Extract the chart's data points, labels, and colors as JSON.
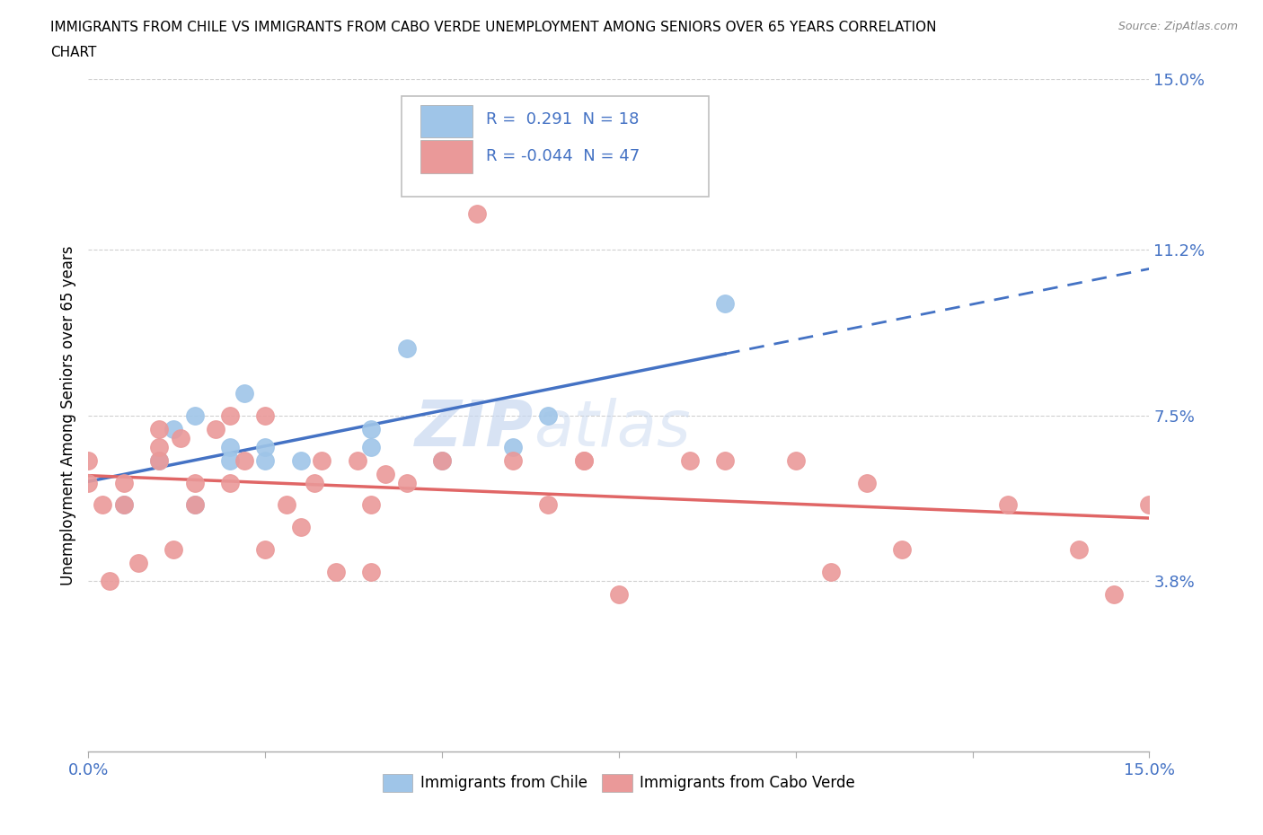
{
  "title_line1": "IMMIGRANTS FROM CHILE VS IMMIGRANTS FROM CABO VERDE UNEMPLOYMENT AMONG SENIORS OVER 65 YEARS CORRELATION",
  "title_line2": "CHART",
  "source_text": "Source: ZipAtlas.com",
  "ylabel": "Unemployment Among Seniors over 65 years",
  "xmin": 0.0,
  "xmax": 0.15,
  "ymin": 0.0,
  "ymax": 0.15,
  "yticks": [
    0.038,
    0.075,
    0.112,
    0.15
  ],
  "ytick_labels": [
    "3.8%",
    "7.5%",
    "11.2%",
    "15.0%"
  ],
  "xticks_major": [
    0.0,
    0.05,
    0.1,
    0.15
  ],
  "xticks_minor": [
    0.0,
    0.025,
    0.05,
    0.075,
    0.1,
    0.125,
    0.15
  ],
  "xtick_labels_show": {
    "0.0": "0.0%",
    "0.15": "15.0%"
  },
  "chile_color": "#9fc5e8",
  "cabo_verde_color": "#ea9999",
  "chile_line_color": "#4472c4",
  "cabo_verde_line_color": "#e06666",
  "chile_R": 0.291,
  "chile_N": 18,
  "cabo_verde_R": -0.044,
  "cabo_verde_N": 47,
  "chile_x": [
    0.005,
    0.01,
    0.012,
    0.015,
    0.015,
    0.02,
    0.02,
    0.022,
    0.025,
    0.025,
    0.03,
    0.04,
    0.04,
    0.045,
    0.05,
    0.06,
    0.065,
    0.09
  ],
  "chile_y": [
    0.055,
    0.065,
    0.072,
    0.055,
    0.075,
    0.065,
    0.068,
    0.08,
    0.065,
    0.068,
    0.065,
    0.072,
    0.068,
    0.09,
    0.065,
    0.068,
    0.075,
    0.1
  ],
  "cabo_verde_x": [
    0.0,
    0.0,
    0.002,
    0.003,
    0.005,
    0.005,
    0.007,
    0.01,
    0.01,
    0.01,
    0.012,
    0.013,
    0.015,
    0.015,
    0.018,
    0.02,
    0.02,
    0.022,
    0.025,
    0.025,
    0.028,
    0.03,
    0.032,
    0.033,
    0.035,
    0.038,
    0.04,
    0.04,
    0.042,
    0.045,
    0.05,
    0.055,
    0.06,
    0.065,
    0.07,
    0.075,
    0.085,
    0.09,
    0.1,
    0.105,
    0.11,
    0.115,
    0.13,
    0.14,
    0.145,
    0.15,
    0.07
  ],
  "cabo_verde_y": [
    0.06,
    0.065,
    0.055,
    0.038,
    0.06,
    0.055,
    0.042,
    0.065,
    0.068,
    0.072,
    0.045,
    0.07,
    0.055,
    0.06,
    0.072,
    0.075,
    0.06,
    0.065,
    0.075,
    0.045,
    0.055,
    0.05,
    0.06,
    0.065,
    0.04,
    0.065,
    0.055,
    0.04,
    0.062,
    0.06,
    0.065,
    0.12,
    0.065,
    0.055,
    0.065,
    0.035,
    0.065,
    0.065,
    0.065,
    0.04,
    0.06,
    0.045,
    0.055,
    0.045,
    0.035,
    0.055,
    0.065
  ],
  "watermark_line1": "ZIP",
  "watermark_line2": "atlas",
  "background_color": "#ffffff",
  "grid_color": "#d0d0d0",
  "tick_color": "#4472c4",
  "legend_border_color": "#c0c0c0",
  "legend_R_color": "#4472c4",
  "legend_N_color": "#000000"
}
